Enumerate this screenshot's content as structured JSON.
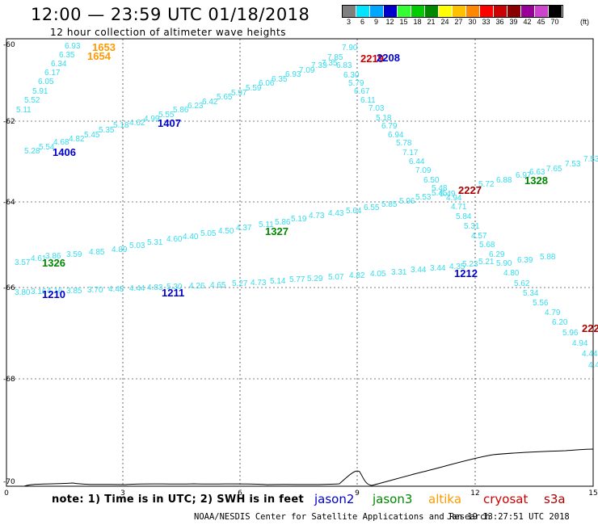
{
  "header": {
    "title": "12:00 — 23:59 UTC 01/18/2018",
    "subtitle": "12 hour collection of altimeter wave heights"
  },
  "colorbar": {
    "unit": "(ft)",
    "bins": [
      {
        "label": "3",
        "color": "#7f7f7f"
      },
      {
        "label": "6",
        "color": "#00e5ff"
      },
      {
        "label": "9",
        "color": "#00a6ff"
      },
      {
        "label": "12",
        "color": "#0000cc"
      },
      {
        "label": "15",
        "color": "#33ff33"
      },
      {
        "label": "18",
        "color": "#00cc00"
      },
      {
        "label": "21",
        "color": "#008800"
      },
      {
        "label": "24",
        "color": "#ffff00"
      },
      {
        "label": "27",
        "color": "#ffc000"
      },
      {
        "label": "30",
        "color": "#ff8800"
      },
      {
        "label": "33",
        "color": "#ff0000"
      },
      {
        "label": "36",
        "color": "#cc0000"
      },
      {
        "label": "39",
        "color": "#880000"
      },
      {
        "label": "42",
        "color": "#990099"
      },
      {
        "label": "45",
        "color": "#cc44cc"
      },
      {
        "label": "70",
        "color": "#000000"
      }
    ]
  },
  "axes": {
    "x_ticks": [
      "0",
      "3",
      "6",
      "9",
      "12",
      "15"
    ],
    "y_ticks": [
      "-60",
      "-62",
      "-64",
      "-66",
      "-68",
      "-70"
    ]
  },
  "tracks": [
    {
      "id": "t1",
      "color": "#33ddee",
      "values": [
        "5.11",
        "5.52",
        "5.91",
        "6.05",
        "6.17",
        "6.34",
        "6.35",
        "6.93"
      ]
    },
    {
      "id": "t2",
      "color": "#33ddee",
      "values": [
        "5.28",
        "5.54",
        "4.68",
        "4.82",
        "5.45",
        "5.35",
        "5.18",
        "4.62",
        "4.99",
        "5.55",
        "5.86",
        "6.23",
        "6.42",
        "5.65",
        "5.97",
        "5.59",
        "6.06",
        "6.35",
        "6.93",
        "7.09",
        "7.33",
        "7.35",
        "7.85",
        "7.90"
      ]
    },
    {
      "id": "t3",
      "color": "#33ddee",
      "values": [
        "6.83",
        "6.30",
        "5.79",
        "6.67",
        "6.11",
        "7.03",
        "5.18",
        "6.79",
        "6.94",
        "5.78",
        "7.17",
        "6.44",
        "7.09",
        "6.50",
        "5.48",
        "5.49",
        "4.94",
        "4.71",
        "5.84",
        "5.31",
        "4.57",
        "5.68",
        "6.29",
        "5.90",
        "4.80",
        "5.62",
        "5.34",
        "5.56",
        "4.79",
        "6.20",
        "5.96",
        "4.94",
        "4.44",
        "4.4"
      ]
    },
    {
      "id": "t4",
      "color": "#33ddee",
      "values": [
        "5.72",
        "6.88",
        "6.97",
        "6.63",
        "7.65",
        "7.53",
        "7.53"
      ]
    },
    {
      "id": "t5",
      "color": "#33ddee",
      "values": [
        "3.57",
        "4.61",
        "3.86",
        "3.59",
        "4.85",
        "4.89",
        "5.03",
        "5.31",
        "4.60",
        "4.40",
        "5.05",
        "4.50",
        "4.37",
        "5.11",
        "5.86",
        "5.19",
        "4.73",
        "4.43",
        "5.64",
        "6.55",
        "5.85",
        "5.96",
        "5.53",
        "5.45"
      ]
    },
    {
      "id": "t6",
      "color": "#33ddee",
      "values": [
        "3.80",
        "3.16",
        "4.16",
        "3.85",
        "3.70",
        "4.48",
        "4.44",
        "4.83",
        "5.30",
        "4.26",
        "4.65",
        "5.27",
        "4.73",
        "5.14",
        "5.77",
        "5.29",
        "5.07",
        "4.82",
        "4.05",
        "3.31",
        "3.44",
        "3.44",
        "4.35",
        "5.23",
        "5.21",
        "6.39",
        "5.88"
      ]
    }
  ],
  "pass_labels": [
    {
      "text": "1653",
      "color": "#ff9900"
    },
    {
      "text": "1654",
      "color": "#ff9900"
    },
    {
      "text": "1406",
      "color": "#0000cc"
    },
    {
      "text": "1407",
      "color": "#0000cc"
    },
    {
      "text": "2219",
      "color": "#cc0000"
    },
    {
      "text": "2208",
      "color": "#0000cc"
    },
    {
      "text": "2227",
      "color": "#aa0000"
    },
    {
      "text": "1328",
      "color": "#008800"
    },
    {
      "text": "1327",
      "color": "#008800"
    },
    {
      "text": "1326",
      "color": "#008800"
    },
    {
      "text": "1210",
      "color": "#0000cc"
    },
    {
      "text": "1211",
      "color": "#0000cc"
    },
    {
      "text": "1212",
      "color": "#0000cc"
    },
    {
      "text": "222",
      "color": "#aa0000"
    }
  ],
  "footer": {
    "note": "note: 1) Time is in UTC; 2) SWH is in feet",
    "satellites": [
      {
        "name": "jason2",
        "color": "#0000cc"
      },
      {
        "name": "jason3",
        "color": "#008800"
      },
      {
        "name": "altika",
        "color": "#ff9900"
      },
      {
        "name": "cryosat",
        "color": "#cc0000"
      },
      {
        "name": "s3a",
        "color": "#aa0000"
      }
    ],
    "credit": "NOAA/NESDIS Center for Satellite Applications and Research",
    "timestamp": "Jan 19 13:27:51 UTC 2018"
  }
}
